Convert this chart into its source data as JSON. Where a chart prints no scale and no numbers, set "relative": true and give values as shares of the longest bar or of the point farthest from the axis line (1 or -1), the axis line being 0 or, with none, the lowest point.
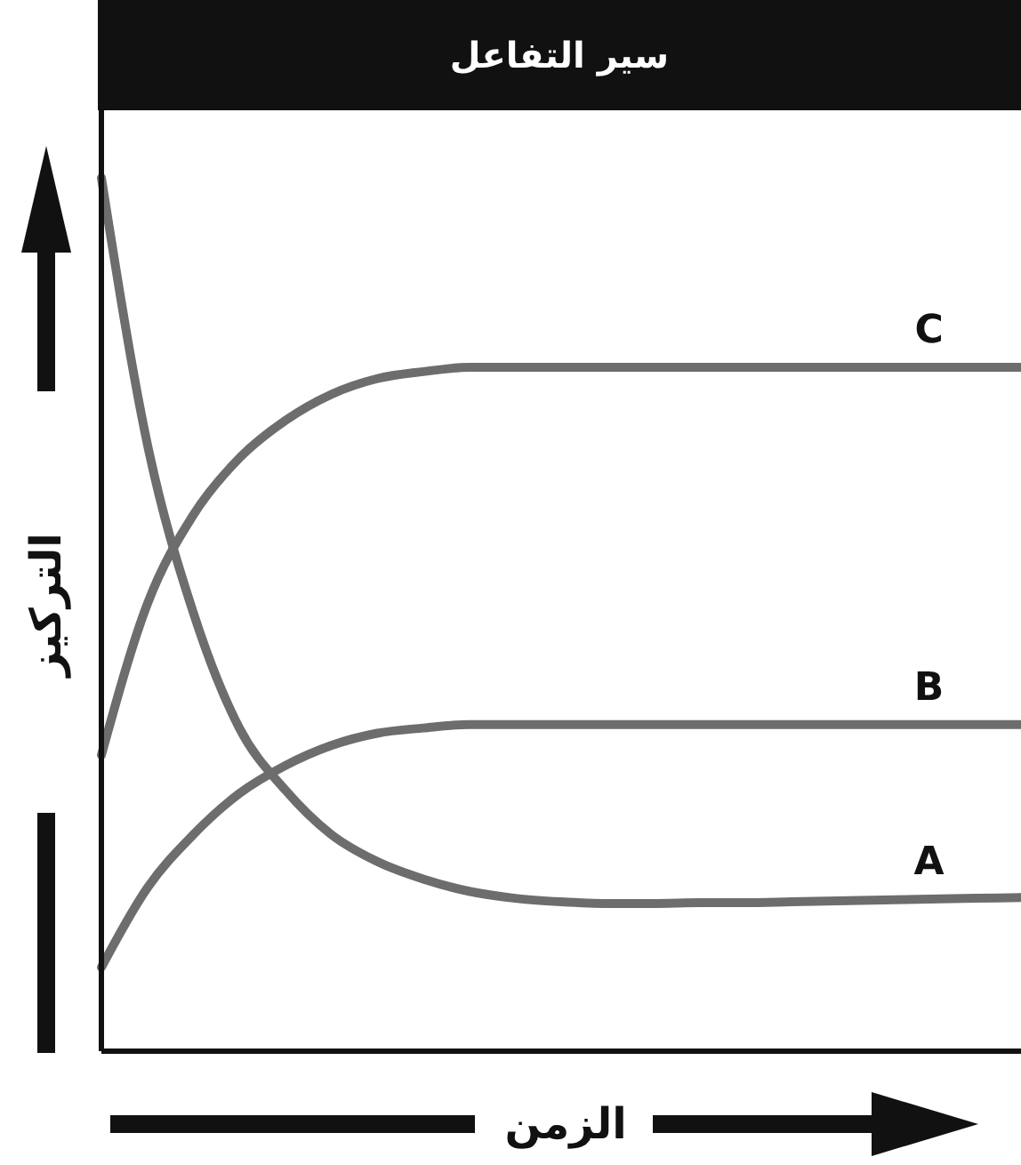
{
  "chart_data": {
    "type": "line",
    "title": "سير التفاعل",
    "xlabel": "الزمن",
    "ylabel": "التركيز",
    "relative": true,
    "marker": "none",
    "line_style": "solid",
    "categories": [
      null,
      null,
      null,
      null,
      null,
      null,
      null,
      null,
      null,
      null,
      null,
      null,
      null,
      null,
      null,
      null,
      null,
      null,
      null,
      null,
      null
    ],
    "series": [
      {
        "name": "C",
        "color": "#6d6d6d",
        "values": [
          0.339,
          0.512,
          0.614,
          0.679,
          0.722,
          0.752,
          0.77,
          0.778,
          0.783,
          0.783,
          0.783,
          0.783,
          0.783,
          0.783,
          0.783,
          0.783,
          0.783,
          0.783,
          0.783,
          0.783,
          0.783
        ]
      },
      {
        "name": "B",
        "color": "#6d6d6d",
        "values": [
          0.096,
          0.187,
          0.248,
          0.295,
          0.327,
          0.35,
          0.364,
          0.37,
          0.374,
          0.374,
          0.374,
          0.374,
          0.374,
          0.374,
          0.374,
          0.374,
          0.374,
          0.374,
          0.374,
          0.374,
          0.374
        ]
      },
      {
        "name": "A",
        "color": "#6d6d6d",
        "values": [
          1.0,
          0.695,
          0.502,
          0.37,
          0.299,
          0.248,
          0.217,
          0.197,
          0.183,
          0.175,
          0.171,
          0.169,
          0.169,
          0.17,
          0.17,
          0.171,
          0.172,
          0.173,
          0.174,
          0.175,
          0.176
        ]
      }
    ]
  }
}
